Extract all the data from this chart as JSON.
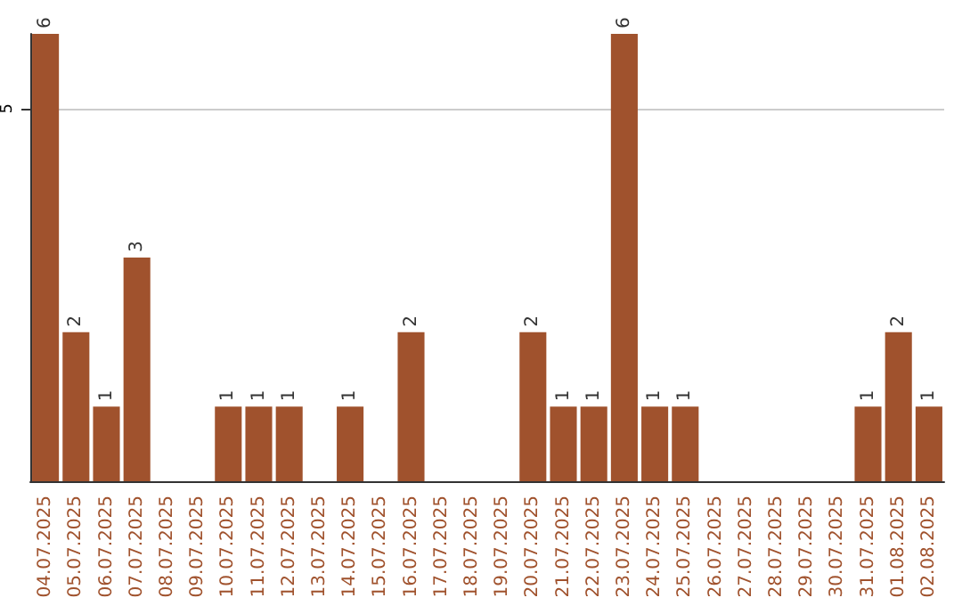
{
  "chart_data": {
    "type": "bar",
    "categories": [
      "04.07.2025",
      "05.07.2025",
      "06.07.2025",
      "07.07.2025",
      "08.07.2025",
      "09.07.2025",
      "10.07.2025",
      "11.07.2025",
      "12.07.2025",
      "13.07.2025",
      "14.07.2025",
      "15.07.2025",
      "16.07.2025",
      "17.07.2025",
      "18.07.2025",
      "19.07.2025",
      "20.07.2025",
      "21.07.2025",
      "22.07.2025",
      "23.07.2025",
      "24.07.2025",
      "25.07.2025",
      "26.07.2025",
      "27.07.2025",
      "28.07.2025",
      "29.07.2025",
      "30.07.2025",
      "31.07.2025",
      "01.08.2025",
      "02.08.2025"
    ],
    "values": [
      6,
      2,
      1,
      3,
      0,
      0,
      1,
      1,
      1,
      0,
      1,
      0,
      2,
      0,
      0,
      0,
      2,
      1,
      1,
      6,
      1,
      1,
      0,
      0,
      0,
      0,
      0,
      1,
      2,
      1
    ],
    "value_labels": [
      "6",
      "2",
      "1",
      "3",
      null,
      null,
      "1",
      "1",
      "1",
      null,
      "1",
      null,
      "2",
      null,
      null,
      null,
      "2",
      "1",
      "1",
      "6",
      "1",
      "1",
      null,
      null,
      null,
      null,
      null,
      "1",
      "2",
      "1"
    ],
    "color": "#a0522d",
    "ylim": [
      0,
      6
    ],
    "yticks": [
      5
    ],
    "grid": "y"
  }
}
